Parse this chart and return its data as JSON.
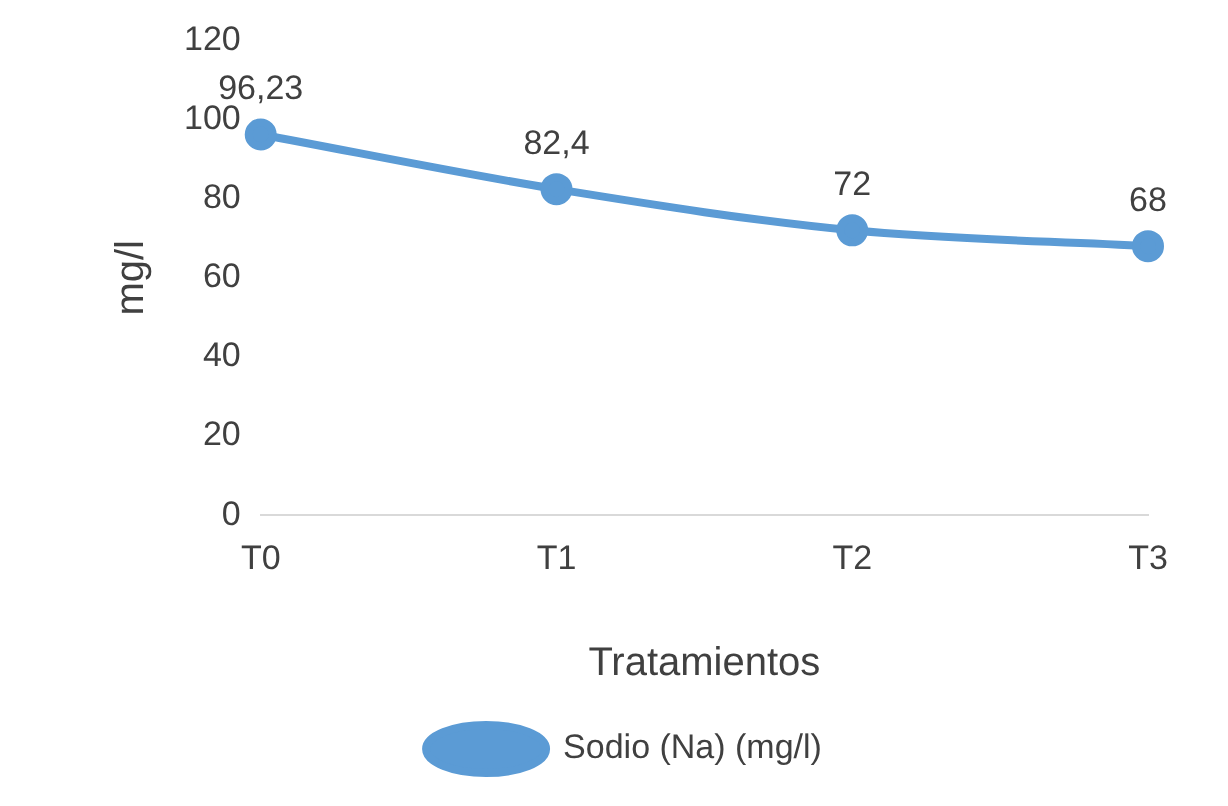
{
  "chart_data": {
    "type": "line",
    "xlabel": "Tratamientos",
    "ylabel": "mg/l",
    "categories": [
      "T0",
      "T1",
      "T2",
      "T3"
    ],
    "series": [
      {
        "name": "Sodio (Na) (mg/l)",
        "color": "#5b9bd5",
        "values": [
          96.23,
          82.4,
          72,
          68
        ],
        "value_labels": [
          "96,23",
          "82,4",
          "72",
          "68"
        ]
      }
    ],
    "ylim": [
      0,
      120
    ],
    "yticks": [
      0,
      20,
      40,
      60,
      80,
      100,
      120
    ],
    "legend": "bottom",
    "marker": "circle",
    "line_style": "solid"
  }
}
